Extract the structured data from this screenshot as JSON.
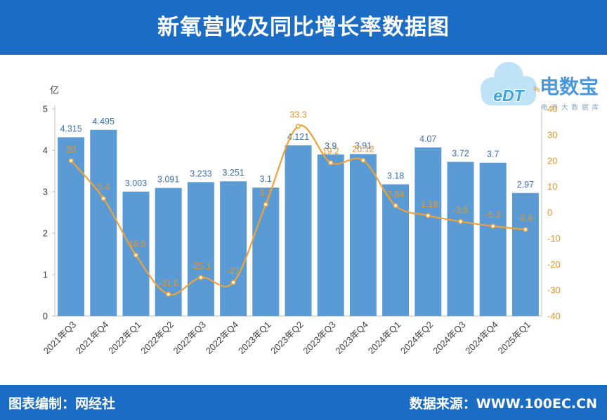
{
  "chart_data": {
    "type": "bar",
    "title": "新氧营收及同比增长率数据图",
    "categories": [
      "2021年Q3",
      "2021年Q4",
      "2022年Q1",
      "2022年Q2",
      "2022年Q3",
      "2022年Q4",
      "2023年Q1",
      "2023年Q2",
      "2023年Q3",
      "2023年Q4",
      "2024年Q1",
      "2024年Q2",
      "2024年Q3",
      "2024年Q4",
      "2025年Q1"
    ],
    "series": [
      {
        "type": "bar",
        "axis": "left",
        "values": [
          4.315,
          4.495,
          3.003,
          3.091,
          3.233,
          3.251,
          3.1,
          4.121,
          3.9,
          3.91,
          3.18,
          4.07,
          3.72,
          3.7,
          2.97
        ]
      },
      {
        "type": "line",
        "axis": "right",
        "smooth": true,
        "values": [
          20,
          5.4,
          -16.5,
          -31.6,
          -25.1,
          -27,
          3.1,
          33.3,
          19.2,
          20.12,
          2.64,
          -1.18,
          -3.5,
          -5.3,
          -6.6
        ]
      }
    ],
    "y_left": {
      "unit": "亿",
      "range": [
        0,
        5
      ],
      "ticks": [
        0,
        1,
        2,
        3,
        4,
        5
      ]
    },
    "y_right": {
      "unit": "%",
      "range": [
        -40,
        40
      ],
      "ticks": [
        40,
        30,
        20,
        10,
        0,
        -10,
        -20,
        -30,
        -40
      ]
    },
    "grid": false,
    "legend": "none"
  },
  "footer": {
    "credit": "图表编制：网经社",
    "source": "数据来源：WWW.100EC.CN"
  },
  "logo": {
    "icon": "cloud-logo-icon",
    "mark": "eDT",
    "name": "电数宝",
    "tagline": "电商大数据库"
  },
  "colors": {
    "banner": "#1a6cc4",
    "bar": "#5b9bd5",
    "bar_label": "#3b70b8",
    "line": "#eea23b",
    "line_label": "#e8952a",
    "marker_fill": "#fff4e4",
    "axis_text": "#404040",
    "axis_line": "#bfbfbf",
    "logo_cloud": "#b9e1f7",
    "logo_text": "#3a8fd8"
  }
}
